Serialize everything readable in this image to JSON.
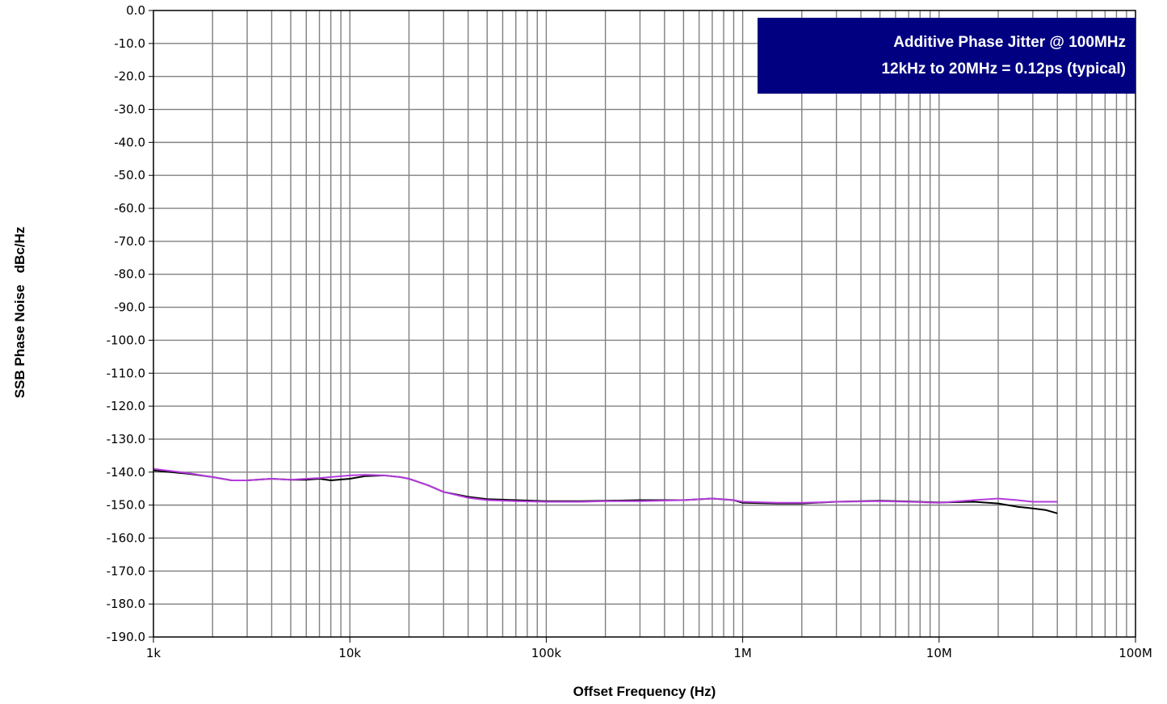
{
  "chart_data": {
    "type": "line",
    "xlabel": "Offset Frequency (Hz)",
    "ylabel": "SSB Phase Noise   dBc/Hz",
    "xscale": "log",
    "xlim": [
      1000,
      100000000
    ],
    "ylim": [
      -190,
      0
    ],
    "grid": true,
    "x_ticks": [
      1000,
      10000,
      100000,
      1000000,
      10000000,
      100000000
    ],
    "x_tick_labels": [
      "1k",
      "10k",
      "100k",
      "1M",
      "10M",
      "100M"
    ],
    "y_ticks": [
      0,
      -10,
      -20,
      -30,
      -40,
      -50,
      -60,
      -70,
      -80,
      -90,
      -100,
      -110,
      -120,
      -130,
      -140,
      -150,
      -160,
      -170,
      -180,
      -190
    ],
    "y_tick_labels": [
      "0.0",
      "-10.0",
      "-20.0",
      "-30.0",
      "-40.0",
      "-50.0",
      "-60.0",
      "-70.0",
      "-80.0",
      "-90.0",
      "-100.0",
      "-110.0",
      "-120.0",
      "-130.0",
      "-140.0",
      "-150.0",
      "-160.0",
      "-170.0",
      "-180.0",
      "-190.0"
    ],
    "annotation": {
      "line1": "Additive Phase Jitter @ 100MHz",
      "line2": "12kHz to 20MHz = 0.12ps (typical)",
      "background": "#000080",
      "text_color": "#ffffff"
    },
    "series": [
      {
        "color": "#000000",
        "x": [
          1000,
          1500,
          2000,
          2500,
          3000,
          4000,
          5000,
          6000,
          7000,
          8000,
          10000,
          12000,
          15000,
          18000,
          20000,
          25000,
          30000,
          40000,
          50000,
          70000,
          100000,
          150000,
          200000,
          300000,
          500000,
          700000,
          900000,
          1000000,
          1500000,
          2000000,
          3000000,
          5000000,
          7000000,
          10000000,
          15000000,
          20000000,
          25000000,
          30000000,
          35000000,
          40000000
        ],
        "y": [
          -139.5,
          -140.5,
          -141.5,
          -142.5,
          -142.5,
          -142.0,
          -142.3,
          -142.3,
          -142.0,
          -142.5,
          -142.0,
          -141.2,
          -141.0,
          -141.5,
          -142.0,
          -144.0,
          -146.0,
          -147.5,
          -148.2,
          -148.5,
          -148.8,
          -148.8,
          -148.7,
          -148.5,
          -148.5,
          -148.0,
          -148.5,
          -149.3,
          -149.5,
          -149.5,
          -149.0,
          -148.7,
          -148.9,
          -149.2,
          -149.0,
          -149.5,
          -150.5,
          -151.0,
          -151.5,
          -152.5
        ]
      },
      {
        "color": "#b43cdc",
        "x": [
          1000,
          1500,
          2000,
          2500,
          3000,
          4000,
          5000,
          6000,
          7000,
          8000,
          10000,
          12000,
          15000,
          18000,
          20000,
          25000,
          30000,
          40000,
          50000,
          70000,
          100000,
          150000,
          200000,
          300000,
          500000,
          700000,
          900000,
          1000000,
          1500000,
          2000000,
          3000000,
          5000000,
          7000000,
          10000000,
          15000000,
          20000000,
          25000000,
          30000000,
          35000000,
          40000000
        ],
        "y": [
          -139.0,
          -140.3,
          -141.5,
          -142.5,
          -142.5,
          -142.0,
          -142.3,
          -142.0,
          -141.8,
          -141.5,
          -141.0,
          -140.8,
          -141.0,
          -141.5,
          -142.0,
          -144.0,
          -146.0,
          -147.8,
          -148.5,
          -148.8,
          -149.0,
          -149.0,
          -148.8,
          -148.8,
          -148.5,
          -148.0,
          -148.5,
          -149.0,
          -149.3,
          -149.3,
          -149.0,
          -148.8,
          -149.0,
          -149.3,
          -148.5,
          -148.0,
          -148.5,
          -149.0,
          -149.0,
          -149.0
        ]
      }
    ]
  }
}
